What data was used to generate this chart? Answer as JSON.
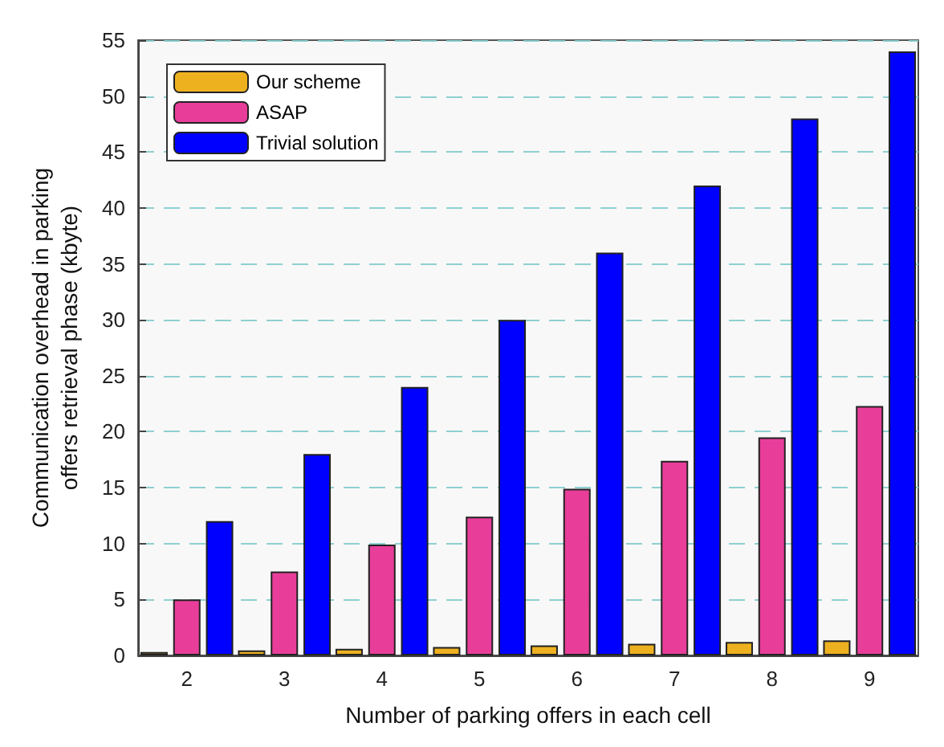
{
  "chart_data": {
    "type": "bar",
    "xlabel": "Number of parking offers in each cell",
    "ylabel": "Communication overhead in parking\noffers retrieval phase (kbyte)",
    "categories": [
      "2",
      "3",
      "4",
      "5",
      "6",
      "7",
      "8",
      "9"
    ],
    "series": [
      {
        "name": "Our scheme",
        "color": "#edb120",
        "values": [
          0.3,
          0.45,
          0.6,
          0.75,
          0.9,
          1.05,
          1.2,
          1.35
        ]
      },
      {
        "name": "ASAP",
        "color": "#e83e9a",
        "values": [
          5,
          7.5,
          9.9,
          12.4,
          14.9,
          17.4,
          19.5,
          22.3
        ]
      },
      {
        "name": "Trivial solution",
        "color": "#0000ff",
        "values": [
          12,
          18,
          24,
          30,
          36,
          42,
          48,
          54
        ]
      }
    ],
    "ylim": [
      0,
      55
    ],
    "yticks": [
      0,
      5,
      10,
      15,
      20,
      25,
      30,
      35,
      40,
      45,
      50,
      55
    ],
    "grid": "y",
    "legend": "top left"
  }
}
